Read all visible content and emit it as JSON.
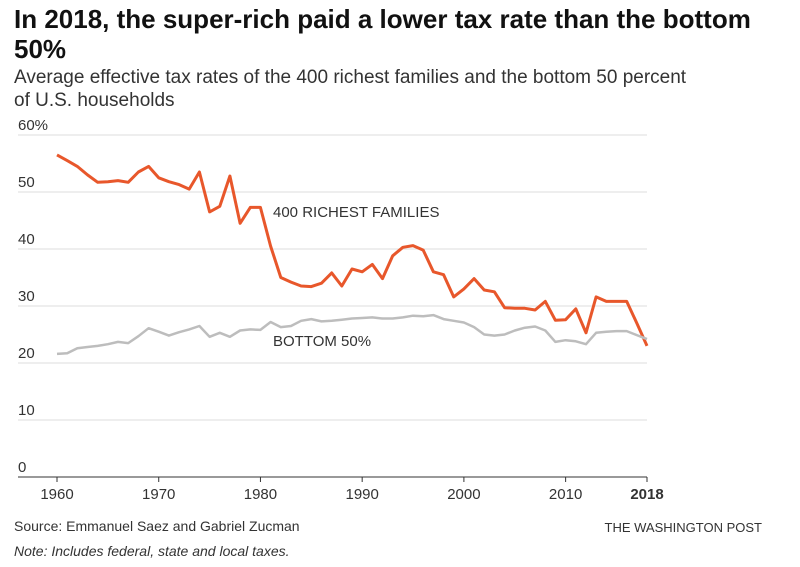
{
  "chart_data": {
    "type": "line",
    "title": "In 2018, the super-rich paid a lower tax rate than the bottom 50%",
    "subtitle": "Average effective tax rates of the 400 richest families and the bottom 50 percent of U.S. households",
    "x": [
      1960,
      1961,
      1962,
      1963,
      1964,
      1965,
      1966,
      1967,
      1968,
      1969,
      1970,
      1971,
      1972,
      1973,
      1974,
      1975,
      1976,
      1977,
      1978,
      1979,
      1980,
      1981,
      1982,
      1983,
      1984,
      1985,
      1986,
      1987,
      1988,
      1989,
      1990,
      1991,
      1992,
      1993,
      1994,
      1995,
      1996,
      1997,
      1998,
      1999,
      2000,
      2001,
      2002,
      2003,
      2004,
      2005,
      2006,
      2007,
      2008,
      2009,
      2010,
      2011,
      2012,
      2013,
      2014,
      2015,
      2016,
      2017,
      2018
    ],
    "series": [
      {
        "name": "400 RICHEST FAMILIES",
        "color": "#e8572b",
        "values": [
          56.5,
          55.5,
          54.5,
          53,
          51.7,
          51.8,
          52,
          51.7,
          53.5,
          54.5,
          52.5,
          51.8,
          51.3,
          50.5,
          53.5,
          46.5,
          47.5,
          52.8,
          44.5,
          47.3,
          47.3,
          40.5,
          35,
          34.2,
          33.5,
          33.4,
          34,
          35.8,
          33.5,
          36.5,
          36,
          37.3,
          34.8,
          38.8,
          40.3,
          40.6,
          39.8,
          36,
          35.5,
          31.6,
          33,
          34.8,
          32.8,
          32.5,
          29.7,
          29.6,
          29.6,
          29.3,
          30.8,
          27.5,
          27.6,
          29.5,
          25.3,
          31.6,
          30.8,
          30.8,
          30.8,
          27,
          23
        ]
      },
      {
        "name": "BOTTOM 50%",
        "color": "#bdbdbd",
        "values": [
          21.6,
          21.7,
          22.6,
          22.8,
          23,
          23.3,
          23.7,
          23.5,
          24.7,
          26.1,
          25.5,
          24.8,
          25.4,
          25.9,
          26.5,
          24.6,
          25.3,
          24.6,
          25.7,
          25.9,
          25.8,
          27.2,
          26.3,
          26.5,
          27.4,
          27.7,
          27.3,
          27.4,
          27.6,
          27.8,
          27.9,
          28,
          27.8,
          27.8,
          28,
          28.3,
          28.2,
          28.4,
          27.7,
          27.4,
          27.1,
          26.3,
          25,
          24.8,
          25,
          25.7,
          26.2,
          26.4,
          25.7,
          23.7,
          24,
          23.8,
          23.3,
          25.3,
          25.5,
          25.6,
          25.6,
          24.9,
          24.2
        ]
      }
    ],
    "xlim": [
      1960,
      2018
    ],
    "xticks": [
      1960,
      1970,
      1980,
      1990,
      2000,
      2010,
      2018
    ],
    "ylim": [
      0,
      60
    ],
    "yticks": [
      0,
      10,
      20,
      30,
      40,
      50,
      {
        "value": 60,
        "label": "60%"
      }
    ],
    "grid": true,
    "source": "Source: Emmanuel Saez and Gabriel Zucman",
    "publisher": "THE WASHINGTON POST",
    "note": "Note: Includes federal, state and local taxes."
  }
}
